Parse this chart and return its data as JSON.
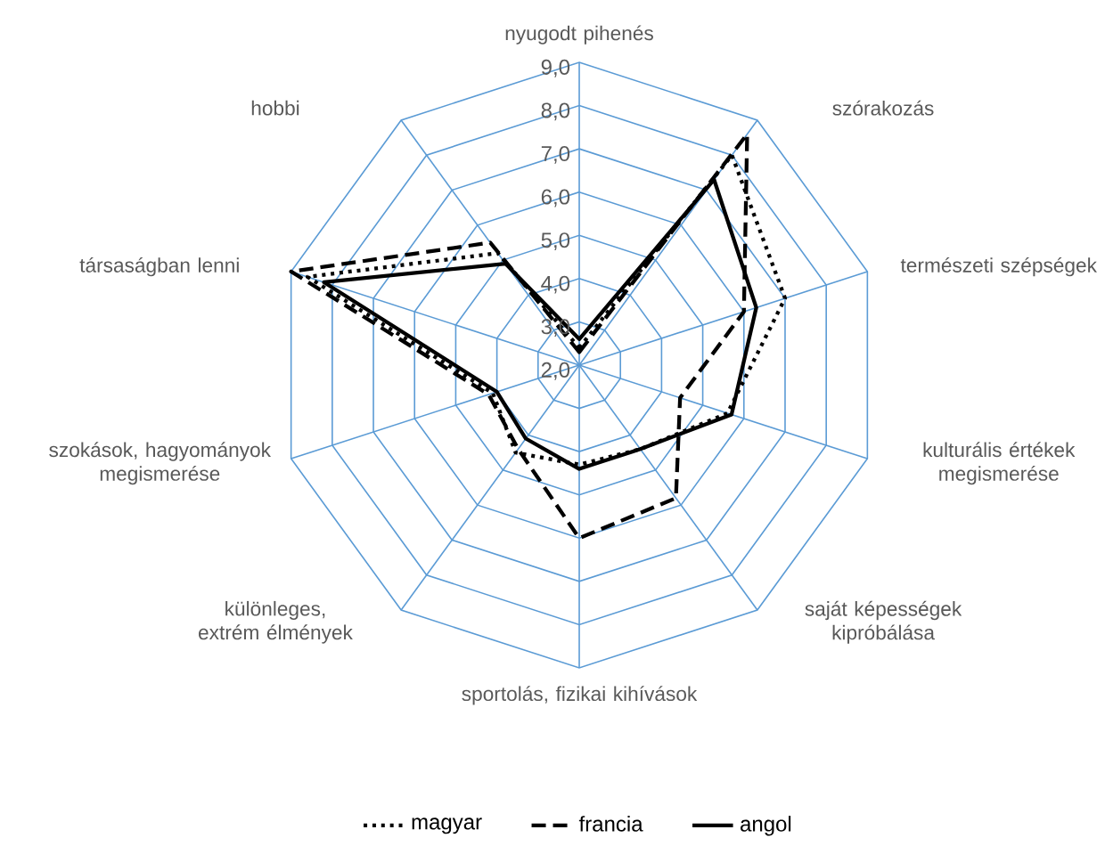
{
  "chart_data": {
    "type": "radar",
    "categories": [
      "nyugodt pihenés",
      "szórakozás",
      "természeti szépségek",
      "kulturális értékek megismerése",
      "saját képességek kipróbálása",
      "sportolás, fizikai kihívások",
      "különleges, extrém élmények",
      "szokások, hagyományok megismerése",
      "társaságban lenni",
      "hobbi"
    ],
    "series": [
      {
        "name": "magyar",
        "color": "#000000",
        "line_style": "dotted",
        "values": [
          2.4,
          8.0,
          7.0,
          5.6,
          4.4,
          4.3,
          4.5,
          4.1,
          8.6,
          5.2
        ]
      },
      {
        "name": "francia",
        "color": "#000000",
        "line_style": "dashed",
        "values": [
          2.3,
          8.6,
          6.0,
          4.45,
          5.8,
          6.0,
          4.4,
          4.2,
          9.0,
          5.5
        ]
      },
      {
        "name": "angol",
        "color": "#000000",
        "line_style": "solid",
        "values": [
          2.6,
          7.3,
          6.3,
          5.7,
          4.4,
          4.4,
          4.1,
          4.0,
          8.2,
          4.9
        ]
      }
    ],
    "ylim": [
      2,
      9
    ],
    "yticks": [
      {
        "value": 2,
        "label": "2,0"
      },
      {
        "value": 3,
        "label": "3,0"
      },
      {
        "value": 4,
        "label": "4,0"
      },
      {
        "value": 5,
        "label": "5,0"
      },
      {
        "value": 6,
        "label": "6,0"
      },
      {
        "value": 7,
        "label": "7,0"
      },
      {
        "value": 8,
        "label": "8,0"
      },
      {
        "value": 9,
        "label": "9,0"
      }
    ],
    "grid": true,
    "legend": "bottom",
    "marker": "none"
  }
}
